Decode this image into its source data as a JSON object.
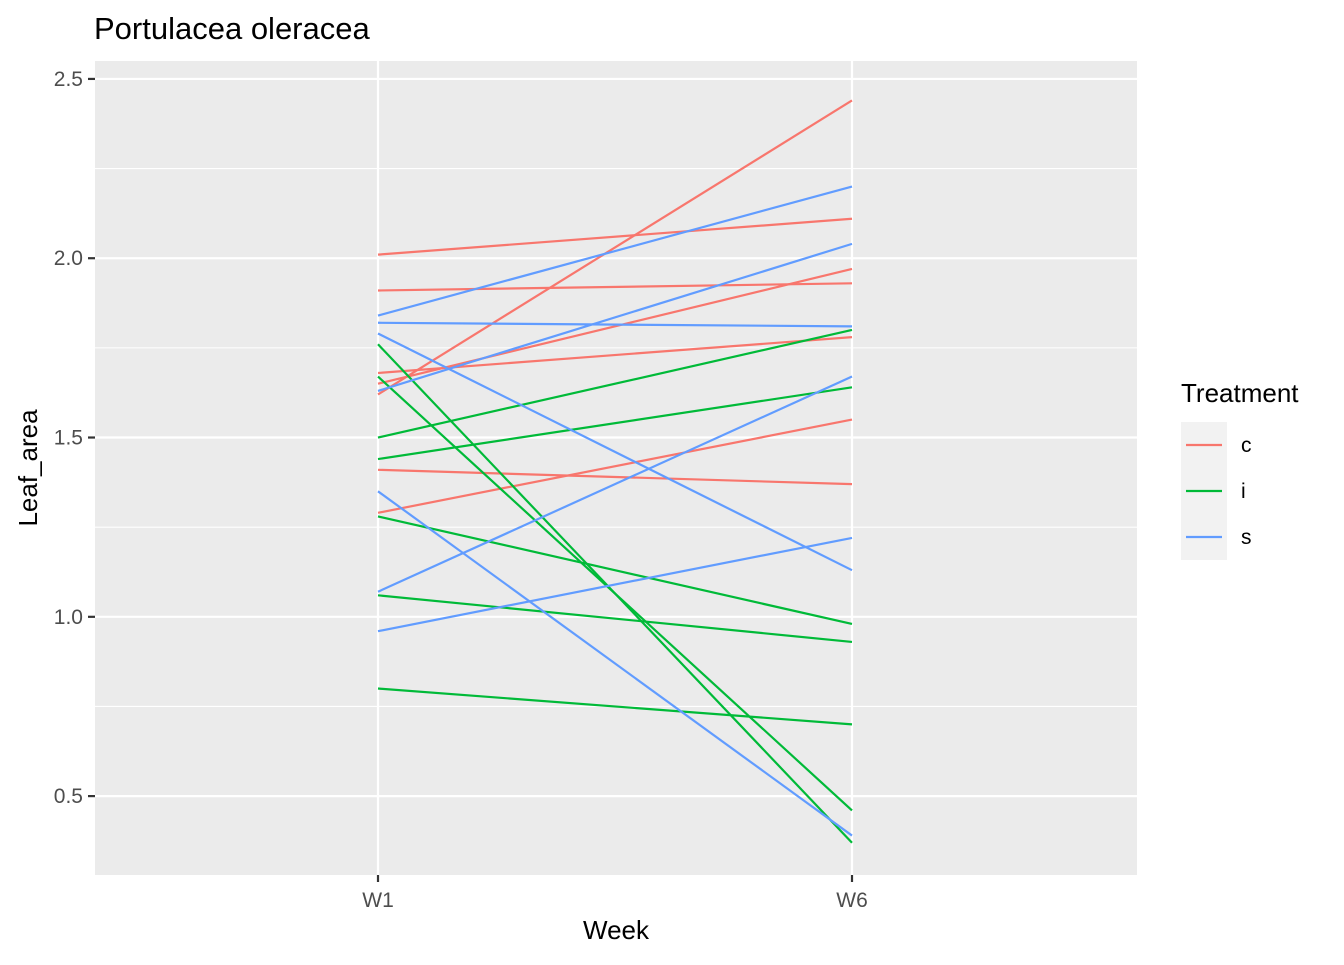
{
  "chart_data": {
    "type": "line",
    "title": "Portulacea oleracea",
    "xlabel": "Week",
    "ylabel": "Leaf_area",
    "categories": [
      "W1",
      "W6"
    ],
    "ylim": [
      0.28,
      2.55
    ],
    "yticks": [
      0.5,
      1.0,
      1.5,
      2.0,
      2.5
    ],
    "ytick_labels": [
      "0.5",
      "1.0",
      "1.5",
      "2.0",
      "2.5"
    ],
    "grid": true,
    "legend": {
      "title": "Treatment",
      "position": "right",
      "entries": [
        {
          "name": "c",
          "color": "#F8766D"
        },
        {
          "name": "i",
          "color": "#00BA38"
        },
        {
          "name": "s",
          "color": "#619CFF"
        }
      ]
    },
    "series": [
      {
        "name": "c",
        "color": "#F8766D",
        "lines": [
          [
            1.62,
            2.44
          ],
          [
            2.01,
            2.11
          ],
          [
            1.91,
            1.93
          ],
          [
            1.65,
            1.97
          ],
          [
            1.68,
            1.78
          ],
          [
            1.41,
            1.37
          ],
          [
            1.29,
            1.55
          ]
        ]
      },
      {
        "name": "i",
        "color": "#00BA38",
        "lines": [
          [
            1.76,
            0.37
          ],
          [
            1.67,
            0.46
          ],
          [
            1.5,
            1.8
          ],
          [
            1.44,
            1.64
          ],
          [
            1.28,
            0.98
          ],
          [
            1.06,
            0.93
          ],
          [
            0.8,
            0.7
          ]
        ]
      },
      {
        "name": "s",
        "color": "#619CFF",
        "lines": [
          [
            1.84,
            2.2
          ],
          [
            1.63,
            2.04
          ],
          [
            1.82,
            1.81
          ],
          [
            1.79,
            1.13
          ],
          [
            1.35,
            0.39
          ],
          [
            1.07,
            1.67
          ],
          [
            0.96,
            1.22
          ]
        ]
      }
    ]
  }
}
